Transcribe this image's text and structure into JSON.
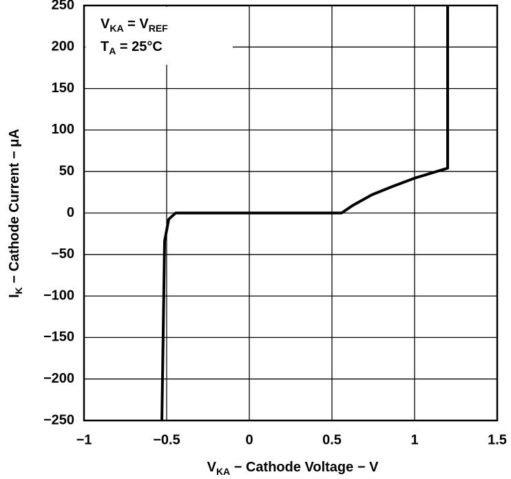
{
  "chart_data": {
    "type": "line",
    "annotations": [
      [
        {
          "text": "V"
        },
        {
          "text": "KA",
          "sub": true
        },
        {
          "text": " = V"
        },
        {
          "text": "REF",
          "sub": true
        }
      ],
      [
        {
          "text": "T"
        },
        {
          "text": "A",
          "sub": true
        },
        {
          "text": " = 25°C"
        }
      ]
    ],
    "x_label": [
      {
        "text": "V"
      },
      {
        "text": "KA",
        "sub": true
      },
      {
        "text": " − Cathode Voltage − V"
      }
    ],
    "y_label": [
      {
        "text": "I"
      },
      {
        "text": "K",
        "sub": true
      },
      {
        "text": " − Cathode Current − μA"
      }
    ],
    "x": [
      -0.529,
      -0.5125,
      -0.4875,
      -0.446,
      0.558,
      0.625,
      0.742,
      0.867,
      1.0,
      1.2,
      1.2
    ],
    "series": [
      {
        "color": "#000000",
        "values": [
          -250,
          -34,
          -7.5,
          0,
          0,
          9,
          22,
          32,
          42,
          54,
          250
        ]
      }
    ],
    "xlim": [
      -1,
      1.5
    ],
    "ylim": [
      -250,
      250
    ],
    "xticks": [
      {
        "value": -1,
        "label": "−1"
      },
      {
        "value": -0.5,
        "label": "−0.5"
      },
      0,
      0.5,
      1,
      1.5
    ],
    "yticks": [
      {
        "value": -250,
        "label": "−250"
      },
      {
        "value": -200,
        "label": "−200"
      },
      {
        "value": -150,
        "label": "−150"
      },
      {
        "value": -100,
        "label": "−100"
      },
      {
        "value": -50,
        "label": "−50"
      },
      0,
      50,
      100,
      150,
      200,
      250
    ],
    "grid": true
  }
}
